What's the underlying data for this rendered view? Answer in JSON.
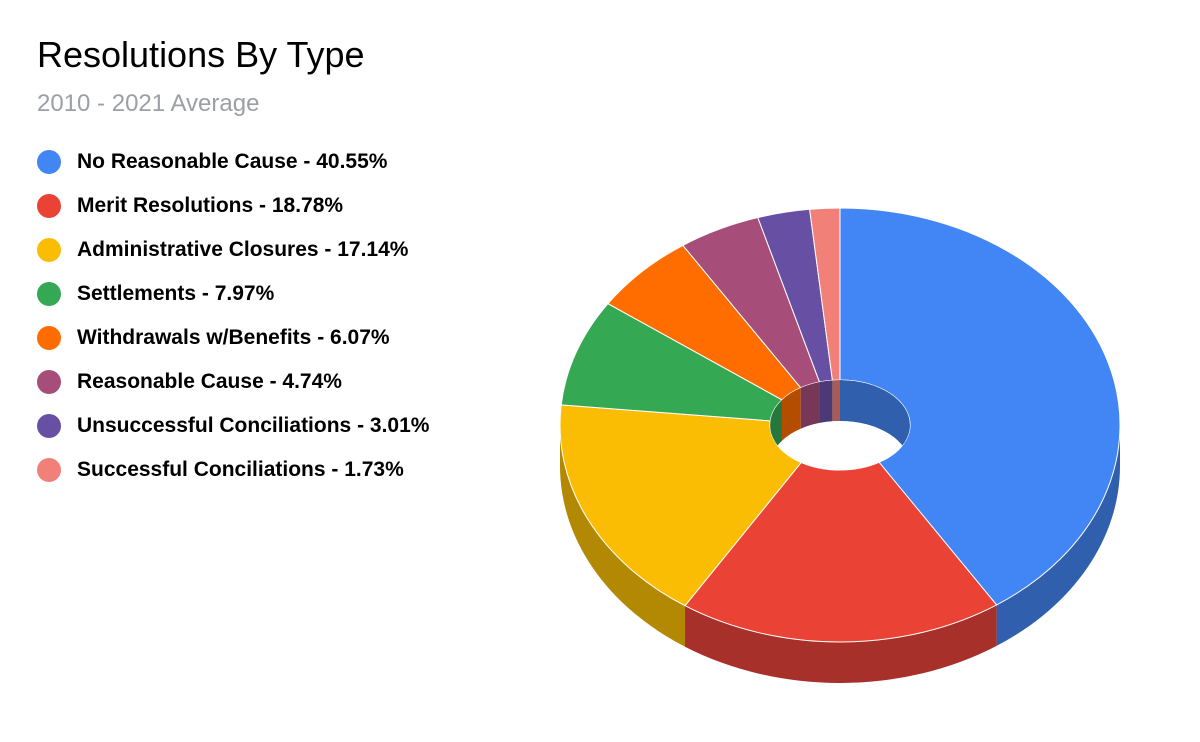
{
  "chart_data": {
    "type": "pie",
    "variant": "3d-donut",
    "title": "Resolutions By Type",
    "subtitle": "2010 - 2021 Average",
    "legend_position": "left",
    "slices": [
      {
        "label": "No Reasonable Cause",
        "value": 40.55,
        "color": "#4285f4",
        "side_color": "#2f5fad"
      },
      {
        "label": "Merit Resolutions",
        "value": 18.78,
        "color": "#ea4335",
        "side_color": "#a8302a"
      },
      {
        "label": "Administrative Closures",
        "value": 17.14,
        "color": "#fbbc04",
        "side_color": "#b38802"
      },
      {
        "label": "Settlements",
        "value": 7.97,
        "color": "#34a853",
        "side_color": "#25783c"
      },
      {
        "label": "Withdrawals w/Benefits",
        "value": 6.07,
        "color": "#ff6d01",
        "side_color": "#b54d00"
      },
      {
        "label": "Reasonable Cause",
        "value": 4.74,
        "color": "#a64d79",
        "side_color": "#773757"
      },
      {
        "label": "Unsuccessful Conciliations",
        "value": 3.01,
        "color": "#6750a4",
        "side_color": "#4a3a76"
      },
      {
        "label": "Successful Conciliations",
        "value": 1.73,
        "color": "#f08078",
        "side_color": "#ab5b55"
      }
    ],
    "legend_entries": [
      "No Reasonable Cause - 40.55%",
      "Merit Resolutions - 18.78%",
      "Administrative Closures - 17.14%",
      "Settlements - 7.97%",
      "Withdrawals w/Benefits - 6.07%",
      "Reasonable Cause - 4.74%",
      "Unsuccessful Conciliations - 3.01%",
      "Successful Conciliations - 1.73%"
    ]
  }
}
